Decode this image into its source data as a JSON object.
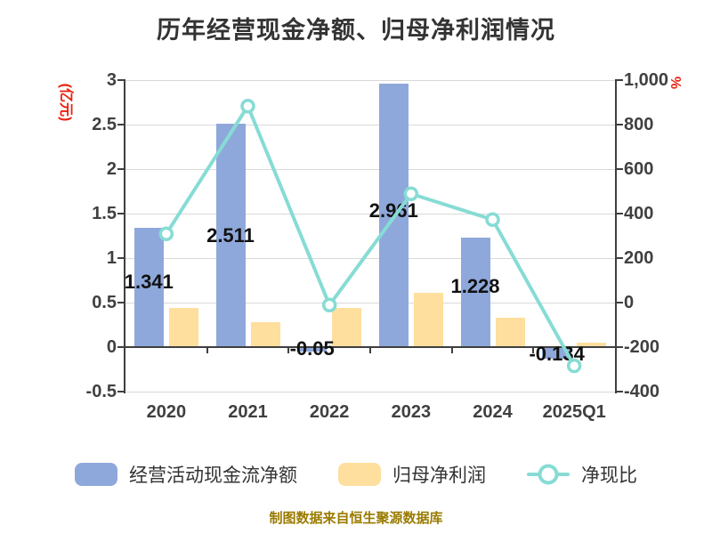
{
  "title": "历年经营现金净额、归母净利润情况",
  "footer": "制图数据来自恒生聚源数据库",
  "left_axis": {
    "unit": "(亿元)",
    "unit_color": "#e8220d",
    "ticks": [
      "3",
      "2.5",
      "2",
      "1.5",
      "1",
      "0.5",
      "0",
      "-0.5"
    ]
  },
  "right_axis": {
    "unit": "%",
    "unit_color": "#e8220d",
    "ticks": [
      "1,000",
      "800",
      "600",
      "400",
      "200",
      "0",
      "-200",
      "-400"
    ]
  },
  "chart_data": {
    "type": "bar+line combo",
    "categories": [
      "2020",
      "2021",
      "2022",
      "2023",
      "2024",
      "2025Q1"
    ],
    "series": [
      {
        "name": "经营活动现金流净额",
        "type": "bar",
        "y_axis": "left",
        "color": "#8FA8DB",
        "values": [
          1.341,
          2.511,
          -0.05,
          2.961,
          1.228,
          -0.134
        ],
        "data_labels": [
          "1.341",
          "2.511",
          "-0.05",
          "2.961",
          "1.228",
          "-0.134"
        ]
      },
      {
        "name": "归母净利润",
        "type": "bar",
        "y_axis": "left",
        "color": "#FFDF9E",
        "values": [
          0.44,
          0.28,
          0.44,
          0.61,
          0.33,
          0.05
        ]
      },
      {
        "name": "净现比",
        "type": "line",
        "y_axis": "right",
        "color": "#86DCD4",
        "values": [
          309,
          883,
          -11,
          489,
          373,
          -284
        ]
      }
    ],
    "left_axis_range": [
      -0.5,
      3
    ],
    "right_axis_range": [
      -400,
      1000
    ],
    "grid": "horizontal only",
    "legend_position": "bottom"
  },
  "legend": {
    "items": [
      {
        "label": "经营活动现金流净额",
        "color": "#8FA8DB",
        "marker": "rounded-rect"
      },
      {
        "label": "归母净利润",
        "color": "#FFDF9E",
        "marker": "rounded-rect"
      },
      {
        "label": "净现比",
        "color": "#86DCD4",
        "marker": "line-circle"
      }
    ]
  }
}
